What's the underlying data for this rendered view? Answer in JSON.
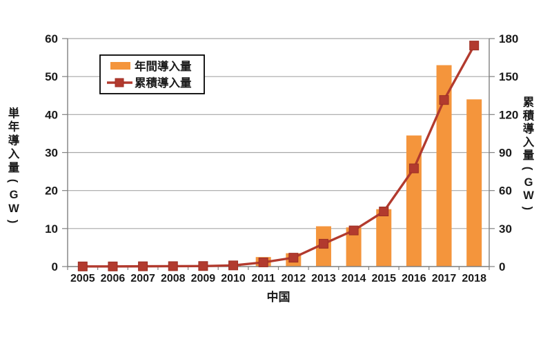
{
  "figure": {
    "background": "#ffffff",
    "colors": {
      "bar": "#F4953C",
      "line": "#B23A2E",
      "marker_stroke": "#9C2F24",
      "grid": "#A6A6A6",
      "axis": "#7F7F7F",
      "text": "#1a1a1a",
      "legend_border": "#000000",
      "legend_fill": "#ffffff"
    },
    "legend": {
      "items": [
        {
          "label": "年間導入量",
          "type": "bar"
        },
        {
          "label": "累積導入量",
          "type": "line"
        }
      ]
    }
  },
  "chart_data": {
    "type": "combo-bar-line",
    "title": "",
    "xlabel": "中国",
    "ylabel_left": "単年導入量(GW)",
    "ylabel_right": "累積導入量(GW)",
    "categories": [
      "2005",
      "2006",
      "2007",
      "2008",
      "2009",
      "2010",
      "2011",
      "2012",
      "2013",
      "2014",
      "2015",
      "2016",
      "2017",
      "2018"
    ],
    "series": [
      {
        "name": "年間導入量",
        "type": "bar",
        "axis": "left",
        "values": [
          0.1,
          0.1,
          0.1,
          0.1,
          0.1,
          0.5,
          2.5,
          3.5,
          10.6,
          10.3,
          15.1,
          34.5,
          53,
          44
        ]
      },
      {
        "name": "累積導入量",
        "type": "line",
        "axis": "right",
        "values": [
          0.1,
          0.1,
          0.2,
          0.3,
          0.4,
          0.9,
          3.3,
          7,
          18,
          28.5,
          43.5,
          77.5,
          131.5,
          174.5
        ]
      }
    ],
    "ylim_left": [
      0,
      60
    ],
    "ylim_right": [
      0,
      180
    ],
    "yticks_left": [
      0,
      10,
      20,
      30,
      40,
      50,
      60
    ],
    "yticks_right": [
      0,
      30,
      60,
      90,
      120,
      150,
      180
    ],
    "grid": true,
    "legend_position": "inside-top-left"
  }
}
